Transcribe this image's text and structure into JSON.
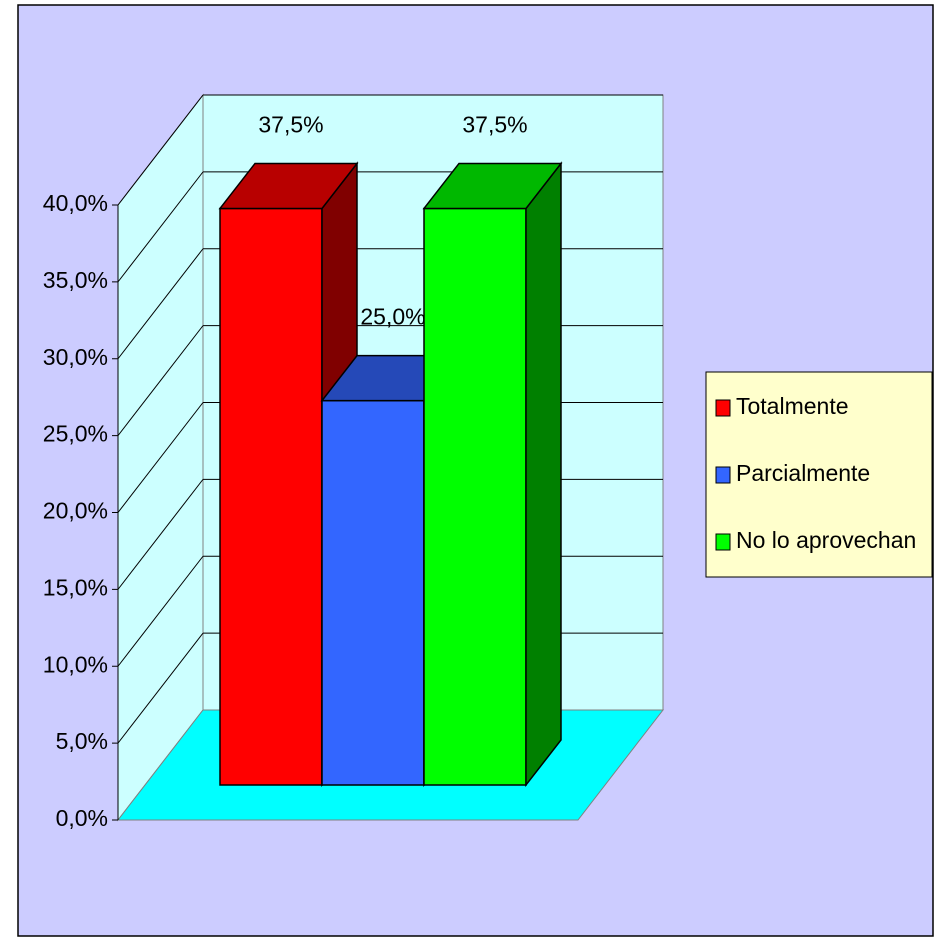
{
  "chart_data": {
    "type": "bar3d",
    "series": [
      {
        "name": "Totalmente",
        "color": "#ff0000",
        "values": [
          37.5
        ],
        "value_labels": [
          "37,5%"
        ]
      },
      {
        "name": "Parcialmente",
        "color": "#3366ff",
        "values": [
          25
        ],
        "value_labels": [
          "25,0%"
        ]
      },
      {
        "name": "No lo aprovechan",
        "color": "#00ff00",
        "values": [
          37.5
        ],
        "value_labels": [
          "37,5%"
        ]
      }
    ],
    "ylim": [
      0,
      40
    ],
    "yticks": [
      {
        "value": 0,
        "label": "0,0%"
      },
      {
        "value": 5,
        "label": "5,0%"
      },
      {
        "value": 10,
        "label": "10,0%"
      },
      {
        "value": 15,
        "label": "15,0%"
      },
      {
        "value": 20,
        "label": "20,0%"
      },
      {
        "value": 25,
        "label": "25,0%"
      },
      {
        "value": 30,
        "label": "30,0%"
      },
      {
        "value": 35,
        "label": "35,0%"
      },
      {
        "value": 40,
        "label": "40,0%"
      }
    ],
    "grid": true,
    "legend": "right"
  }
}
